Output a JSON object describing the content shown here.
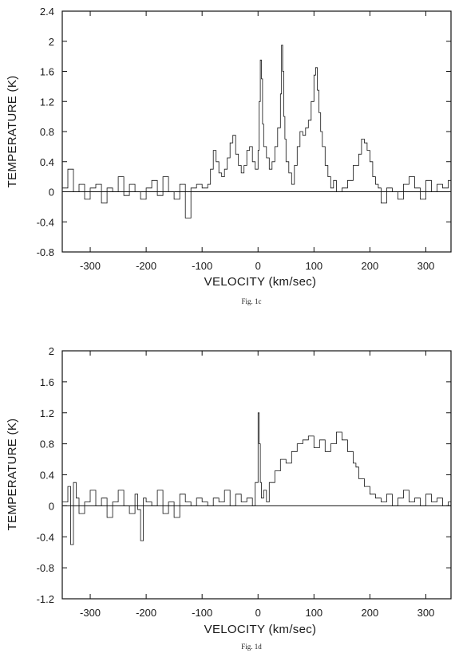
{
  "chart_data": [
    {
      "type": "line",
      "step": true,
      "caption": "Fig. 1c",
      "xlabel": "VELOCITY (km/sec)",
      "ylabel": "TEMPERATURE (K)",
      "xlim": [
        -350,
        345
      ],
      "ylim": [
        -0.8,
        2.4
      ],
      "xticks": [
        -300,
        -200,
        -100,
        0,
        100,
        200,
        300
      ],
      "yticks": [
        -0.8,
        -0.4,
        0,
        0.4,
        0.8,
        1.2,
        1.6,
        2,
        2.4
      ],
      "ytick_labels": [
        "-0.8",
        "-0.4",
        "0",
        "0.4",
        "0.8",
        "1.2",
        "1.6",
        "2",
        "2.4"
      ],
      "baseline": 0,
      "series": [
        {
          "x": [
            -350,
            -340,
            -330,
            -320,
            -310,
            -300,
            -290,
            -280,
            -270,
            -260,
            -250,
            -240,
            -230,
            -220,
            -210,
            -200,
            -190,
            -180,
            -170,
            -160,
            -150,
            -140,
            -130,
            -120,
            -110,
            -100,
            -90,
            -85,
            -80,
            -75,
            -70,
            -65,
            -60,
            -55,
            -50,
            -45,
            -40,
            -35,
            -30,
            -25,
            -20,
            -15,
            -10,
            -5,
            0,
            2,
            4,
            6,
            8,
            10,
            15,
            20,
            25,
            30,
            35,
            40,
            42,
            44,
            46,
            48,
            50,
            55,
            60,
            65,
            70,
            75,
            80,
            85,
            90,
            95,
            100,
            103,
            106,
            109,
            112,
            115,
            120,
            125,
            130,
            135,
            140,
            150,
            160,
            170,
            180,
            185,
            190,
            195,
            200,
            205,
            210,
            215,
            220,
            230,
            240,
            250,
            260,
            270,
            280,
            290,
            300,
            310,
            320,
            330,
            340,
            345
          ],
          "y": [
            0.05,
            0.3,
            0.0,
            0.1,
            -0.1,
            0.05,
            0.1,
            -0.15,
            0.05,
            0.0,
            0.2,
            -0.05,
            0.1,
            0.0,
            -0.1,
            0.05,
            0.15,
            -0.05,
            0.2,
            0.0,
            -0.1,
            0.1,
            -0.35,
            0.05,
            0.1,
            0.05,
            0.1,
            0.3,
            0.55,
            0.4,
            0.25,
            0.2,
            0.3,
            0.45,
            0.65,
            0.75,
            0.5,
            0.35,
            0.25,
            0.35,
            0.55,
            0.6,
            0.4,
            0.3,
            0.55,
            1.2,
            1.75,
            1.5,
            0.9,
            0.6,
            0.45,
            0.3,
            0.4,
            0.6,
            0.85,
            1.3,
            1.95,
            1.6,
            1.0,
            0.7,
            0.4,
            0.25,
            0.1,
            0.35,
            0.6,
            0.8,
            0.75,
            0.85,
            0.95,
            1.2,
            1.55,
            1.65,
            1.35,
            1.05,
            0.8,
            0.6,
            0.35,
            0.2,
            0.05,
            0.15,
            0.0,
            0.05,
            0.15,
            0.35,
            0.5,
            0.7,
            0.65,
            0.55,
            0.4,
            0.2,
            0.1,
            0.05,
            -0.15,
            0.05,
            0.0,
            -0.1,
            0.1,
            0.2,
            0.05,
            -0.1,
            0.15,
            0.0,
            0.1,
            0.05,
            0.15,
            0.1
          ]
        }
      ]
    },
    {
      "type": "line",
      "step": true,
      "caption": "Fig. 1d",
      "xlabel": "VELOCITY (km/sec)",
      "ylabel": "TEMPERATURE (K)",
      "xlim": [
        -350,
        345
      ],
      "ylim": [
        -1.2,
        2
      ],
      "xticks": [
        -300,
        -200,
        -100,
        0,
        100,
        200,
        300
      ],
      "yticks": [
        -1.2,
        -0.8,
        -0.4,
        0,
        0.4,
        0.8,
        1.2,
        1.6,
        2
      ],
      "ytick_labels": [
        "-1.2",
        "-0.8",
        "-0.4",
        "0",
        "0.4",
        "0.8",
        "1.2",
        "1.6",
        "2"
      ],
      "baseline": 0,
      "series": [
        {
          "x": [
            -350,
            -340,
            -335,
            -330,
            -325,
            -320,
            -310,
            -300,
            -290,
            -280,
            -270,
            -260,
            -250,
            -240,
            -230,
            -220,
            -215,
            -210,
            -205,
            -200,
            -190,
            -180,
            -170,
            -160,
            -150,
            -145,
            -140,
            -130,
            -120,
            -110,
            -100,
            -90,
            -80,
            -70,
            -60,
            -50,
            -40,
            -30,
            -20,
            -10,
            -5,
            0,
            2,
            4,
            6,
            10,
            15,
            20,
            30,
            40,
            50,
            60,
            70,
            80,
            90,
            100,
            110,
            120,
            130,
            140,
            150,
            160,
            170,
            175,
            180,
            190,
            200,
            210,
            220,
            230,
            240,
            250,
            260,
            270,
            280,
            290,
            300,
            310,
            320,
            330,
            340,
            345
          ],
          "y": [
            0.05,
            0.25,
            -0.5,
            0.3,
            0.1,
            -0.1,
            0.05,
            0.2,
            0.0,
            0.1,
            -0.15,
            0.05,
            0.2,
            0.0,
            -0.1,
            0.15,
            -0.05,
            -0.45,
            0.1,
            0.05,
            0.0,
            0.2,
            -0.1,
            0.05,
            -0.15,
            -0.15,
            0.15,
            0.05,
            0.0,
            0.1,
            0.05,
            0.0,
            0.1,
            0.05,
            0.2,
            0.0,
            0.15,
            0.05,
            0.1,
            0.0,
            0.3,
            1.2,
            0.8,
            0.3,
            0.1,
            0.2,
            0.05,
            0.3,
            0.45,
            0.6,
            0.55,
            0.7,
            0.8,
            0.85,
            0.9,
            0.75,
            0.85,
            0.7,
            0.8,
            0.95,
            0.85,
            0.7,
            0.55,
            0.5,
            0.35,
            0.25,
            0.15,
            0.1,
            0.05,
            0.15,
            0.0,
            0.1,
            0.2,
            0.05,
            0.1,
            0.0,
            0.15,
            0.05,
            0.1,
            0.0,
            0.05,
            0.0
          ]
        }
      ]
    }
  ]
}
